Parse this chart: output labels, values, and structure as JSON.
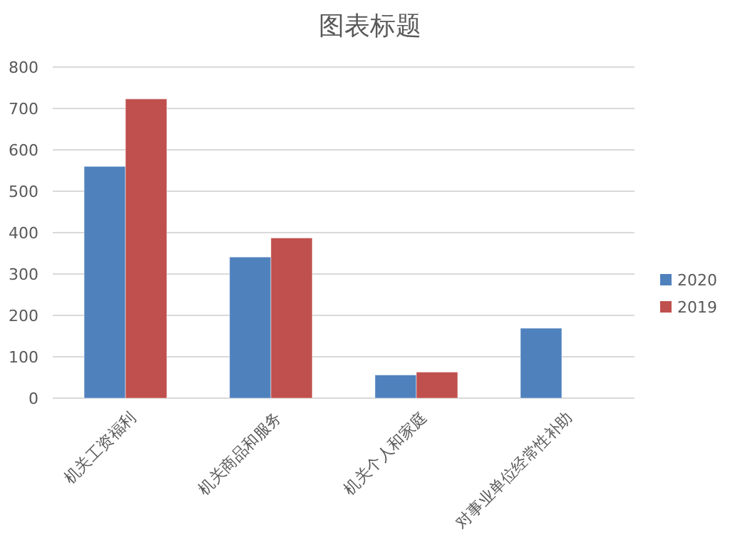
{
  "chart_data": {
    "type": "bar",
    "title": "图表标题",
    "categories": [
      "机关工资福利",
      "机关商品和服务",
      "机关个人和家庭",
      "对事业单位经常性补助"
    ],
    "series": [
      {
        "name": "2020",
        "color": "#4f81bd",
        "values": [
          560,
          341,
          56,
          169
        ]
      },
      {
        "name": "2019",
        "color": "#c0504d",
        "values": [
          723,
          387,
          63,
          null
        ]
      }
    ],
    "ylim": [
      0,
      800
    ],
    "yticks": [
      0,
      100,
      200,
      300,
      400,
      500,
      600,
      700,
      800
    ],
    "grid": "y",
    "legend": "right"
  }
}
